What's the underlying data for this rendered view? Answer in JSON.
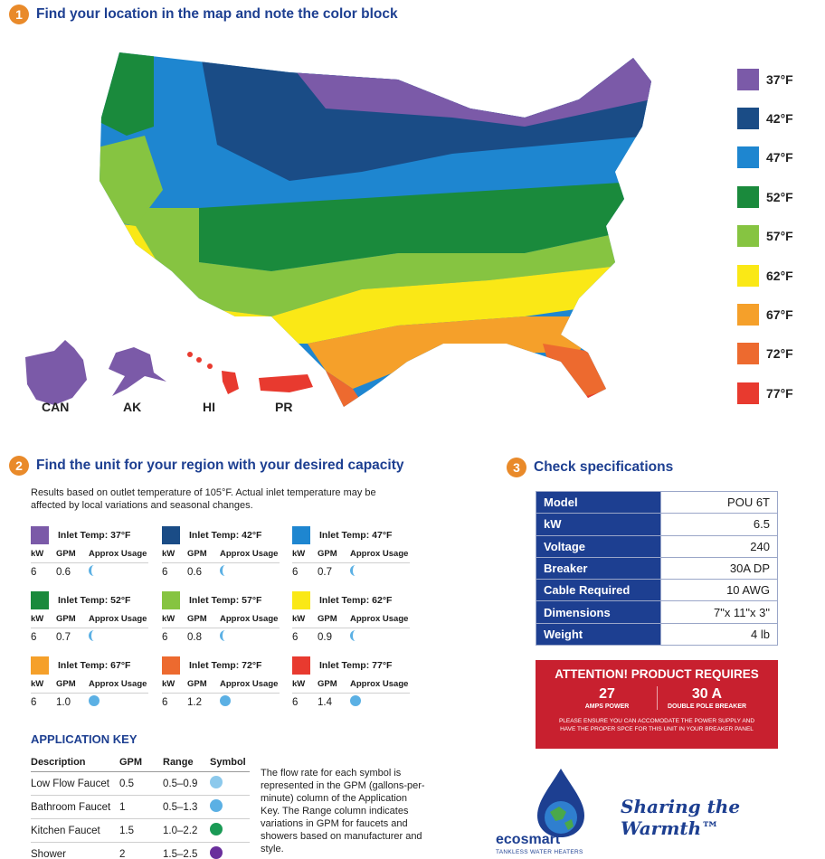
{
  "step1": {
    "num": "1",
    "title": "Find your location in the map and note the color block"
  },
  "step2": {
    "num": "2",
    "title": "Find the unit for your region with your desired capacity"
  },
  "step3": {
    "num": "3",
    "title": "Check specifications"
  },
  "colors": {
    "c37": "#7b5aa8",
    "c42": "#1a4c86",
    "c47": "#1e86d0",
    "c52": "#1a8a3c",
    "c57": "#86c441",
    "c62": "#fae816",
    "c67": "#f5a02a",
    "c72": "#ed6a2f",
    "c77": "#e83a2f",
    "accent": "#1d3f91",
    "orange": "#e98a2a"
  },
  "legend": [
    {
      "label": "37°F",
      "color": "#7b5aa8"
    },
    {
      "label": "42°F",
      "color": "#1a4c86"
    },
    {
      "label": "47°F",
      "color": "#1e86d0"
    },
    {
      "label": "52°F",
      "color": "#1a8a3c"
    },
    {
      "label": "57°F",
      "color": "#86c441"
    },
    {
      "label": "62°F",
      "color": "#fae816"
    },
    {
      "label": "67°F",
      "color": "#f5a02a"
    },
    {
      "label": "72°F",
      "color": "#ed6a2f"
    },
    {
      "label": "77°F",
      "color": "#e83a2f"
    }
  ],
  "map_labels": {
    "can": "CAN",
    "ak": "AK",
    "hi": "HI",
    "pr": "PR"
  },
  "intro": "Results based on outlet temperature of 105°F. Actual inlet temperature may be affected by local variations and seasonal changes.",
  "cap_headers": {
    "kw": "kW",
    "gpm": "GPM",
    "usage": "Approx Usage"
  },
  "capacity": [
    {
      "inlet": "Inlet Temp: 37°F",
      "kw": "6",
      "gpm": "0.6",
      "color": "#7b5aa8",
      "icon": "low-flow-faucet-icon"
    },
    {
      "inlet": "Inlet Temp: 42°F",
      "kw": "6",
      "gpm": "0.6",
      "color": "#1a4c86",
      "icon": "low-flow-faucet-icon"
    },
    {
      "inlet": "Inlet Temp: 47°F",
      "kw": "6",
      "gpm": "0.7",
      "color": "#1e86d0",
      "icon": "low-flow-faucet-icon"
    },
    {
      "inlet": "Inlet Temp: 52°F",
      "kw": "6",
      "gpm": "0.7",
      "color": "#1a8a3c",
      "icon": "low-flow-faucet-icon"
    },
    {
      "inlet": "Inlet Temp: 57°F",
      "kw": "6",
      "gpm": "0.8",
      "color": "#86c441",
      "icon": "low-flow-faucet-icon"
    },
    {
      "inlet": "Inlet Temp: 62°F",
      "kw": "6",
      "gpm": "0.9",
      "color": "#fae816",
      "icon": "low-flow-faucet-icon"
    },
    {
      "inlet": "Inlet Temp: 67°F",
      "kw": "6",
      "gpm": "1.0",
      "color": "#f5a02a",
      "icon": "bathroom-faucet-icon"
    },
    {
      "inlet": "Inlet Temp: 72°F",
      "kw": "6",
      "gpm": "1.2",
      "color": "#ed6a2f",
      "icon": "bathroom-faucet-icon"
    },
    {
      "inlet": "Inlet Temp: 77°F",
      "kw": "6",
      "gpm": "1.4",
      "color": "#e83a2f",
      "icon": "bathroom-faucet-icon"
    }
  ],
  "app_key": {
    "title": "APPLICATION KEY",
    "headers": [
      "Description",
      "GPM",
      "Range",
      "Symbol"
    ],
    "rows": [
      {
        "desc": "Low Flow Faucet",
        "gpm": "0.5",
        "range": "0.5–0.9",
        "color": "#8cc9ec"
      },
      {
        "desc": "Bathroom Faucet",
        "gpm": "1",
        "range": "0.5–1.3",
        "color": "#5bb0e4"
      },
      {
        "desc": "Kitchen Faucet",
        "gpm": "1.5",
        "range": "1.0–2.2",
        "color": "#1a9a55"
      },
      {
        "desc": "Shower",
        "gpm": "2",
        "range": "1.5–2.5",
        "color": "#6a2f9c"
      }
    ],
    "note": "The flow rate for each symbol is represented in the GPM (gallons-per-minute) column of the Application Key. The Range column indicates variations in GPM for faucets and showers based on manufacturer and style."
  },
  "specs": [
    {
      "key": "Model",
      "value": "POU 6T"
    },
    {
      "key": "kW",
      "value": "6.5"
    },
    {
      "key": "Voltage",
      "value": "240"
    },
    {
      "key": "Breaker",
      "value": "30A DP"
    },
    {
      "key": "Cable Required",
      "value": "10 AWG"
    },
    {
      "key": "Dimensions",
      "value": "7\"x 11\"x 3\""
    },
    {
      "key": "Weight",
      "value": "4 lb"
    }
  ],
  "attention": {
    "title": "ATTENTION! PRODUCT REQUIRES",
    "amps": "27",
    "amps_label": "AMPS POWER",
    "breaker": "30 A",
    "breaker_label": "DOUBLE POLE BREAKER",
    "note": "PLEASE ENSURE YOU CAN ACCOMODATE THE POWER SUPPLY AND HAVE THE PROPER SPCE FOR THIS UNIT IN YOUR BREAKER PANEL"
  },
  "brand": {
    "name": "ecosmart",
    "sub": "TANKLESS WATER HEATERS",
    "tagline": "Sharing the Warmth™"
  }
}
